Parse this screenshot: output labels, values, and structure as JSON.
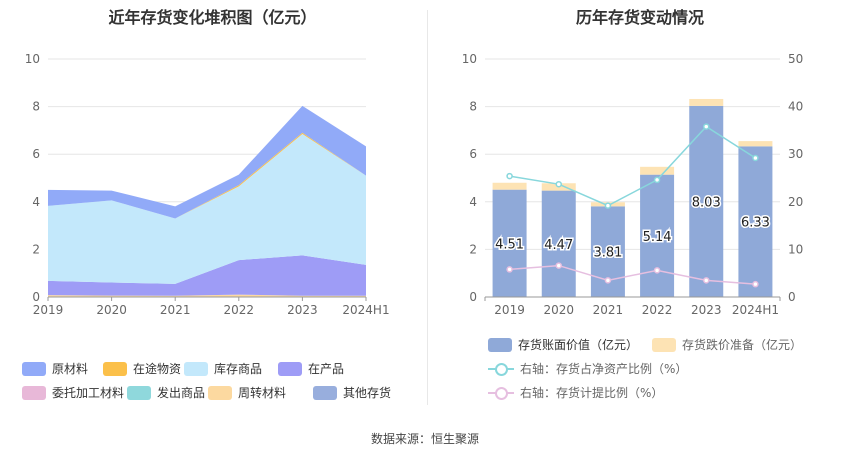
{
  "left_title": "近年存货变化堆积图（亿元）",
  "right_title": "历年存货变动情况",
  "source": "数据来源：恒生聚源",
  "colors": {
    "raw": "#91aaf8",
    "transit": "#fbc04a",
    "goods": "#c3e8fb",
    "wip": "#9e9cf6",
    "consign": "#e8b8d8",
    "shipped": "#8fd8dc",
    "turnover": "#fcd9a0",
    "other": "#98aedd",
    "bar_book": "#8fa9d8",
    "bar_reserve": "#fde3b4",
    "line_ratio": "#88d7dc",
    "line_provision": "#e6bfe0"
  },
  "chart_data": [
    {
      "type": "area",
      "stacked": true,
      "title": "近年存货变化堆积图（亿元）",
      "categories": [
        "2019",
        "2020",
        "2021",
        "2022",
        "2023",
        "2024H1"
      ],
      "ylim": [
        0,
        10
      ],
      "yticks": [
        "0",
        "2",
        "4",
        "6",
        "8",
        "10"
      ],
      "series": [
        {
          "name": "周转材料",
          "key": "turnover",
          "values": [
            0.08,
            0.06,
            0.05,
            0.1,
            0.05,
            0.05
          ]
        },
        {
          "name": "在产品",
          "key": "wip",
          "values": [
            0.6,
            0.55,
            0.5,
            1.45,
            1.7,
            1.3
          ]
        },
        {
          "name": "库存商品",
          "key": "goods",
          "values": [
            3.15,
            3.45,
            2.75,
            3.1,
            5.1,
            3.75
          ]
        },
        {
          "name": "在途物资",
          "key": "transit",
          "values": [
            0.0,
            0.0,
            0.0,
            0.05,
            0.05,
            0.0
          ]
        },
        {
          "name": "原材料",
          "key": "raw",
          "values": [
            0.67,
            0.41,
            0.51,
            0.44,
            1.13,
            1.23
          ]
        }
      ],
      "legend": [
        {
          "name": "原材料",
          "key": "raw"
        },
        {
          "name": "在途物资",
          "key": "transit"
        },
        {
          "name": "库存商品",
          "key": "goods"
        },
        {
          "name": "在产品",
          "key": "wip"
        },
        {
          "name": "委托加工材料",
          "key": "consign"
        },
        {
          "name": "发出商品",
          "key": "shipped"
        },
        {
          "name": "周转材料",
          "key": "turnover"
        },
        {
          "name": "其他存货",
          "key": "other"
        }
      ]
    },
    {
      "type": "bar",
      "title": "历年存货变动情况",
      "categories": [
        "2019",
        "2020",
        "2021",
        "2022",
        "2023",
        "2024H1"
      ],
      "ylim_left": [
        0,
        10
      ],
      "yticks_left": [
        "0",
        "2",
        "4",
        "6",
        "8",
        "10"
      ],
      "ylim_right": [
        0,
        50
      ],
      "yticks_right": [
        "0",
        "10",
        "20",
        "30",
        "40",
        "50"
      ],
      "bars": [
        {
          "name": "存货账面价值（亿元）",
          "key": "bar_book",
          "values": [
            4.51,
            4.47,
            3.81,
            5.14,
            8.03,
            6.33
          ],
          "labels": [
            "4.51",
            "4.47",
            "3.81",
            "5.14",
            "8.03",
            "6.33"
          ]
        },
        {
          "name": "存货跌价准备（亿元）",
          "key": "bar_reserve",
          "values": [
            0.29,
            0.31,
            0.17,
            0.33,
            0.29,
            0.22
          ]
        }
      ],
      "lines": [
        {
          "name": "右轴：存货占净资产比例（%）",
          "key": "line_ratio",
          "values": [
            25.4,
            23.7,
            19.2,
            24.6,
            35.8,
            29.2
          ]
        },
        {
          "name": "右轴：存货计提比例（%）",
          "key": "line_provision",
          "values": [
            5.8,
            6.6,
            3.5,
            5.6,
            3.5,
            2.7
          ]
        }
      ]
    }
  ]
}
